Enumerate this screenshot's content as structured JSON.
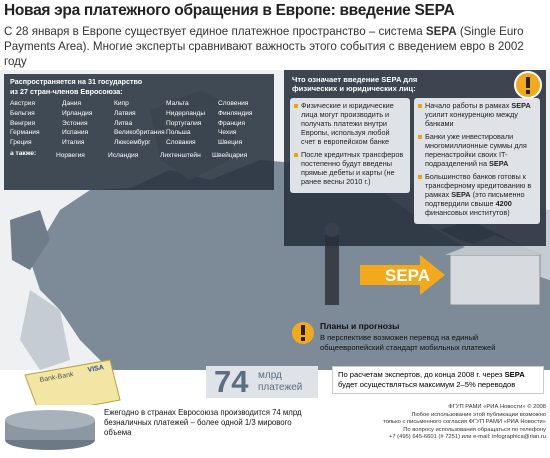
{
  "header": {
    "title": "Новая эра платежного обращения в Европе: введение SEPA",
    "intro": [
      "С 28 января в Европе существует единое платежное пространство – система ",
      "SEPA",
      " (Single Euro Payments Area). Многие эксперты сравнивают важность этого события с введением евро в 2002 году"
    ]
  },
  "countries": {
    "title": "Распространяется на 31 государство",
    "subtitle": "из 27 стран-членов Евросоюза:",
    "columns": [
      [
        "Австрия",
        "Бельгия",
        "Венгрия",
        "Германия",
        "Греция"
      ],
      [
        "Дания",
        "Ирландия",
        "Эстония",
        "Испания",
        "Италия"
      ],
      [
        "Кипр",
        "Латвия",
        "Литва",
        "Великобритания",
        "Люксембург"
      ],
      [
        "Мальта",
        "Нидерланды",
        "Португалия",
        "Польша",
        "Словакия"
      ],
      [
        "Словения",
        "Финляндия",
        "Франция",
        "Чехия",
        "Швеция"
      ]
    ],
    "also_label": "а также:",
    "also": [
      "Норвегия",
      "Исландия",
      "Лихтенштейн",
      "Швейцария"
    ]
  },
  "meaning": {
    "title": "Что означает введение SEPA для физических и юридических лиц:",
    "left": [
      [
        "Физические и юридические лица могут производить и получать платежи внутри Европы, используя любой счет в европейском банке"
      ],
      [
        "После кредитных трансферов постепенно будут введены прямые дебеты и карты (не ранее весны 2010 г.)"
      ]
    ],
    "right": [
      [
        "Начало работы в рамках ",
        "SEPA",
        " усилит конкуренцию между банками"
      ],
      [
        "Банки уже инвестировали многомиллионные суммы для перенастройки своих IT-подразделений на ",
        "SEPA"
      ],
      [
        "Большинство банков готовы к трансферному кредитованию в рамках ",
        "SEPA",
        " (это письменно подтвердили свыше ",
        "4200",
        " финансовых институтов)"
      ]
    ]
  },
  "illustration": {
    "arrow": "SEPA",
    "card_bank": "Bank-Bank",
    "card_brand": "VISA"
  },
  "plans": {
    "title": "Планы и прогнозы",
    "text": "В перспективе возможен перевод на единый общеевропейский стандарт мобильных платежей"
  },
  "payments": {
    "number": "74",
    "unit": "млрд платежей"
  },
  "forecast": [
    "По расчетам экспертов, до конца 2008 г. через ",
    "SEPA",
    " будет осуществляться максимум 2–5% переводов"
  ],
  "yearly": "Ежегодно в странах Евросоюза производится 74 млрд безналичных платежей – более одной 1/3 мирового объема",
  "footer": [
    "ФГУП РАМИ «РИА Новости» © 2008",
    "Любое использование этой публикации возможно",
    "только с письменного согласия ФГУП РАМИ «РИА Новости»",
    "По вопросу использования обращаться по телефону",
    "+7 (495) 645-6601 (# 7251) или e-mail: infographica@rian.ru"
  ]
}
